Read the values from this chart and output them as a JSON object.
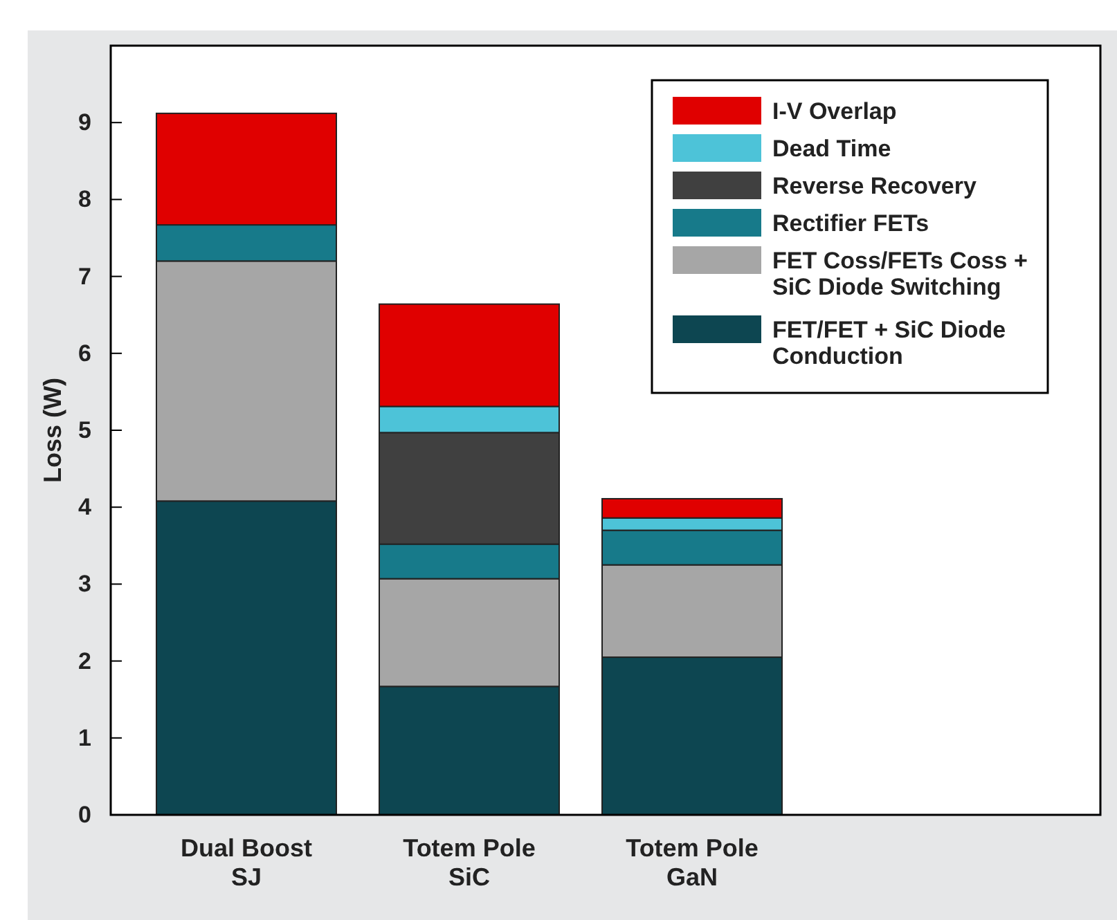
{
  "chart_data": {
    "type": "bar",
    "stacked": true,
    "ylabel": "Loss (W)",
    "categories": [
      "Dual Boost SJ",
      "Totem Pole SiC",
      "Totem Pole GaN"
    ],
    "series": [
      {
        "name": "FET/FET + SiC Diode Conduction",
        "color": "#0d4651",
        "values": [
          4.08,
          1.67,
          2.05
        ]
      },
      {
        "name": "FET Coss/FETs Coss + SiC Diode Switching",
        "color": "#a6a6a6",
        "values": [
          3.12,
          1.4,
          1.2
        ]
      },
      {
        "name": "Rectifier FETs",
        "color": "#177a8a",
        "values": [
          0.47,
          0.45,
          0.45
        ]
      },
      {
        "name": "Reverse Recovery",
        "color": "#404040",
        "values": [
          0,
          1.45,
          0
        ]
      },
      {
        "name": "Dead Time",
        "color": "#4dc3d8",
        "values": [
          0,
          0.34,
          0.16
        ]
      },
      {
        "name": "I-V Overlap",
        "color": "#e00000",
        "values": [
          1.45,
          1.33,
          0.25
        ]
      }
    ],
    "ylim": [
      0,
      10
    ],
    "yticks": [
      0,
      1,
      2,
      3,
      4,
      5,
      6,
      7,
      8,
      9,
      {
        "value": 10,
        "label": null
      }
    ],
    "legend": "top right",
    "grid": false
  }
}
